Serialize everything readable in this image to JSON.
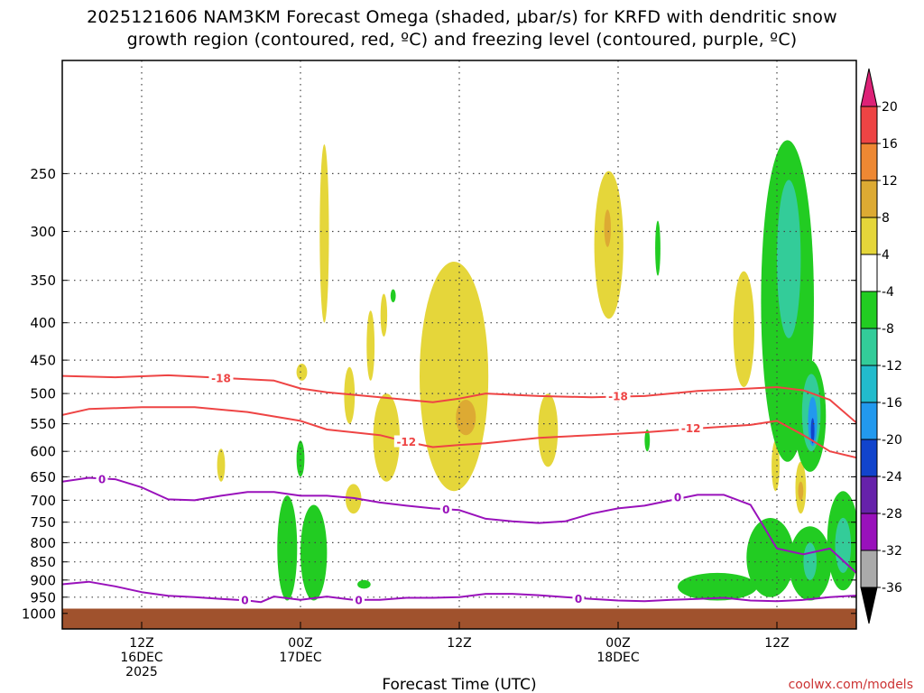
{
  "chart_data": {
    "type": "heatmap",
    "title_line1": "2025121606 NAM3KM Forecast Omega (shaded, μbar/s) for KRFD with dendritic snow",
    "title_line2": "growth region (contoured, red, ºC) and freezing level (contoured, purple, ºC)",
    "xlabel": "Forecast Time (UTC)",
    "credit": "coolwx.com/models",
    "x_ticks": [
      {
        "hour": 6,
        "line1": "12Z",
        "line2": "16DEC",
        "line3": "2025"
      },
      {
        "hour": 18,
        "line1": "00Z",
        "line2": "17DEC",
        "line3": ""
      },
      {
        "hour": 30,
        "line1": "12Z",
        "line2": "",
        "line3": ""
      },
      {
        "hour": 42,
        "line1": "00Z",
        "line2": "18DEC",
        "line3": ""
      },
      {
        "hour": 54,
        "line1": "12Z",
        "line2": "",
        "line3": ""
      }
    ],
    "xlim": [
      0,
      60
    ],
    "ylim_hpa": [
      1050,
      175
    ],
    "y_scale": "log-pressure",
    "y_ticks": [
      250,
      300,
      350,
      400,
      450,
      500,
      550,
      600,
      650,
      700,
      750,
      800,
      850,
      900,
      950,
      1000
    ],
    "grid": true,
    "colorbar": {
      "ticks": [
        "20",
        "16",
        "12",
        "8",
        "4",
        "-4",
        "-8",
        "-12",
        "-16",
        "-20",
        "-24",
        "-28",
        "-32",
        "-36"
      ],
      "colors": [
        "#dd2277",
        "#ee4444",
        "#ee8833",
        "#ddaa33",
        "#e5d63a",
        "#ffffff",
        "#22cc22",
        "#33cc99",
        "#22bbcc",
        "#2299ee",
        "#1144cc",
        "#6622aa",
        "#9911bb",
        "#aaaaaa",
        "#000000"
      ]
    },
    "terrain_color": "#a0522d",
    "terrain_top_hpa": 985,
    "dgz_contours": [
      {
        "level": "-18",
        "color": "#ee4444",
        "x": [
          0,
          4,
          8,
          12,
          16,
          18,
          20,
          24,
          28,
          30,
          32,
          36,
          40,
          44,
          48,
          52,
          54,
          56,
          58,
          60
        ],
        "p": [
          473,
          475,
          472,
          476,
          480,
          492,
          498,
          506,
          514,
          508,
          500,
          504,
          506,
          504,
          496,
          492,
          490,
          495,
          510,
          548
        ]
      },
      {
        "level": "-12",
        "color": "#ee4444",
        "x": [
          0,
          2,
          6,
          10,
          14,
          18,
          20,
          24,
          26,
          28,
          30,
          32,
          36,
          40,
          44,
          48,
          52,
          54,
          56,
          58,
          60
        ],
        "p": [
          535,
          525,
          522,
          522,
          530,
          545,
          560,
          570,
          582,
          592,
          588,
          585,
          575,
          570,
          565,
          558,
          552,
          545,
          570,
          600,
          612
        ]
      }
    ],
    "freezing_contours": [
      {
        "level": "0",
        "color": "#9911bb",
        "x": [
          0,
          2,
          4,
          6,
          8,
          10,
          12,
          14,
          16,
          18,
          20,
          22,
          24,
          26,
          28,
          30,
          32,
          34,
          36,
          38,
          40,
          42,
          44,
          46,
          48,
          50,
          52,
          53,
          54,
          56,
          58,
          60
        ],
        "p": [
          660,
          652,
          655,
          672,
          698,
          700,
          690,
          682,
          682,
          690,
          690,
          695,
          705,
          712,
          718,
          722,
          742,
          748,
          752,
          748,
          730,
          718,
          712,
          700,
          688,
          688,
          710,
          760,
          815,
          830,
          815,
          880
        ]
      },
      {
        "level": "0",
        "color": "#9911bb",
        "x": [
          0,
          2,
          4,
          6,
          8,
          10,
          12,
          14,
          15,
          16,
          18,
          20,
          22,
          24,
          26,
          28,
          30,
          32,
          34,
          36,
          38,
          40,
          42,
          44,
          46,
          48,
          50,
          52,
          54,
          56,
          58,
          60
        ],
        "p": [
          912,
          905,
          918,
          935,
          946,
          950,
          955,
          960,
          965,
          948,
          958,
          948,
          958,
          958,
          952,
          952,
          950,
          940,
          940,
          944,
          950,
          955,
          960,
          962,
          958,
          955,
          952,
          960,
          962,
          958,
          950,
          945
        ]
      }
    ],
    "contour_labels": [
      {
        "text": "-18",
        "x": 12,
        "p": 476,
        "color": "#ee4444"
      },
      {
        "text": "-18",
        "x": 42,
        "p": 504,
        "color": "#ee4444"
      },
      {
        "text": "-12",
        "x": 26,
        "p": 582,
        "color": "#ee4444"
      },
      {
        "text": "-12",
        "x": 47.5,
        "p": 558,
        "color": "#ee4444"
      },
      {
        "text": "0",
        "x": 3,
        "p": 655,
        "color": "#9911bb"
      },
      {
        "text": "0",
        "x": 29,
        "p": 720,
        "color": "#9911bb"
      },
      {
        "text": "0",
        "x": 46.5,
        "p": 693,
        "color": "#9911bb"
      },
      {
        "text": "0",
        "x": 13.8,
        "p": 958,
        "color": "#9911bb"
      },
      {
        "text": "0",
        "x": 22.4,
        "p": 958,
        "color": "#9911bb"
      },
      {
        "text": "0",
        "x": 39,
        "p": 955,
        "color": "#9911bb"
      }
    ],
    "omega_regions": [
      {
        "value": 4,
        "color": "#e5d63a",
        "cx": 19.8,
        "top": 228,
        "bottom": 400,
        "halfwidth": 0.35
      },
      {
        "value": 4,
        "color": "#e5d63a",
        "cx": 18.1,
        "top": 455,
        "bottom": 480,
        "halfwidth": 0.4
      },
      {
        "value": 4,
        "color": "#e5d63a",
        "cx": 21.7,
        "top": 460,
        "bottom": 550,
        "halfwidth": 0.4
      },
      {
        "value": 4,
        "color": "#e5d63a",
        "cx": 23.3,
        "top": 385,
        "bottom": 480,
        "halfwidth": 0.3
      },
      {
        "value": 4,
        "color": "#e5d63a",
        "cx": 24.3,
        "top": 365,
        "bottom": 418,
        "halfwidth": 0.25
      },
      {
        "value": 4,
        "color": "#e5d63a",
        "cx": 24.5,
        "top": 500,
        "bottom": 660,
        "halfwidth": 1.0
      },
      {
        "value": 4,
        "color": "#e5d63a",
        "cx": 29.6,
        "top": 330,
        "bottom": 680,
        "halfwidth": 2.6
      },
      {
        "value": 8,
        "color": "#ddaa33",
        "cx": 30.5,
        "top": 510,
        "bottom": 570,
        "halfwidth": 0.75
      },
      {
        "value": 4,
        "color": "#e5d63a",
        "cx": 36.7,
        "top": 500,
        "bottom": 630,
        "halfwidth": 0.75
      },
      {
        "value": 4,
        "color": "#e5d63a",
        "cx": 41.3,
        "top": 248,
        "bottom": 395,
        "halfwidth": 1.1
      },
      {
        "value": 8,
        "color": "#ddaa33",
        "cx": 41.2,
        "top": 280,
        "bottom": 315,
        "halfwidth": 0.25
      },
      {
        "value": 4,
        "color": "#e5d63a",
        "cx": 12.0,
        "top": 595,
        "bottom": 660,
        "halfwidth": 0.3
      },
      {
        "value": 4,
        "color": "#e5d63a",
        "cx": 22.0,
        "top": 665,
        "bottom": 730,
        "halfwidth": 0.6
      },
      {
        "value": 4,
        "color": "#e5d63a",
        "cx": 51.5,
        "top": 340,
        "bottom": 490,
        "halfwidth": 0.8
      },
      {
        "value": 4,
        "color": "#e5d63a",
        "cx": 53.9,
        "top": 580,
        "bottom": 680,
        "halfwidth": 0.3
      },
      {
        "value": 4,
        "color": "#e5d63a",
        "cx": 55.8,
        "top": 620,
        "bottom": 730,
        "halfwidth": 0.4
      },
      {
        "value": 8,
        "color": "#ddaa33",
        "cx": 55.8,
        "top": 660,
        "bottom": 700,
        "halfwidth": 0.2
      },
      {
        "value": -4,
        "color": "#22cc22",
        "cx": 54.8,
        "top": 225,
        "bottom": 620,
        "halfwidth": 2.0
      },
      {
        "value": -8,
        "color": "#33cc99",
        "cx": 54.9,
        "top": 255,
        "bottom": 420,
        "halfwidth": 0.9
      },
      {
        "value": -4,
        "color": "#22cc22",
        "cx": 56.5,
        "top": 450,
        "bottom": 640,
        "halfwidth": 1.2
      },
      {
        "value": -8,
        "color": "#33cc99",
        "cx": 56.6,
        "top": 470,
        "bottom": 600,
        "halfwidth": 0.7
      },
      {
        "value": -16,
        "color": "#2299ee",
        "cx": 56.7,
        "top": 505,
        "bottom": 590,
        "halfwidth": 0.35
      },
      {
        "value": -24,
        "color": "#1144cc",
        "cx": 56.7,
        "top": 540,
        "bottom": 585,
        "halfwidth": 0.12
      },
      {
        "value": -4,
        "color": "#22cc22",
        "cx": 17.0,
        "top": 690,
        "bottom": 960,
        "halfwidth": 0.75
      },
      {
        "value": -4,
        "color": "#22cc22",
        "cx": 19.0,
        "top": 710,
        "bottom": 960,
        "halfwidth": 1.0
      },
      {
        "value": -4,
        "color": "#22cc22",
        "cx": 18.0,
        "top": 580,
        "bottom": 650,
        "halfwidth": 0.3
      },
      {
        "value": -4,
        "color": "#22cc22",
        "cx": 22.8,
        "top": 900,
        "bottom": 925,
        "halfwidth": 0.5
      },
      {
        "value": -4,
        "color": "#22cc22",
        "cx": 25.0,
        "top": 360,
        "bottom": 375,
        "halfwidth": 0.2
      },
      {
        "value": -4,
        "color": "#22cc22",
        "cx": 44.2,
        "top": 560,
        "bottom": 600,
        "halfwidth": 0.2
      },
      {
        "value": -4,
        "color": "#22cc22",
        "cx": 45.0,
        "top": 290,
        "bottom": 345,
        "halfwidth": 0.2
      },
      {
        "value": -4,
        "color": "#22cc22",
        "cx": 53.5,
        "top": 740,
        "bottom": 950,
        "halfwidth": 1.8
      },
      {
        "value": -4,
        "color": "#22cc22",
        "cx": 49.5,
        "top": 880,
        "bottom": 960,
        "halfwidth": 3.0
      },
      {
        "value": -4,
        "color": "#22cc22",
        "cx": 56.5,
        "top": 760,
        "bottom": 960,
        "halfwidth": 1.6
      },
      {
        "value": -8,
        "color": "#33cc99",
        "cx": 56.5,
        "top": 800,
        "bottom": 900,
        "halfwidth": 0.5
      },
      {
        "value": -4,
        "color": "#22cc22",
        "cx": 59.0,
        "top": 680,
        "bottom": 930,
        "halfwidth": 1.2
      },
      {
        "value": -8,
        "color": "#33cc99",
        "cx": 59.0,
        "top": 740,
        "bottom": 880,
        "halfwidth": 0.6
      }
    ]
  }
}
